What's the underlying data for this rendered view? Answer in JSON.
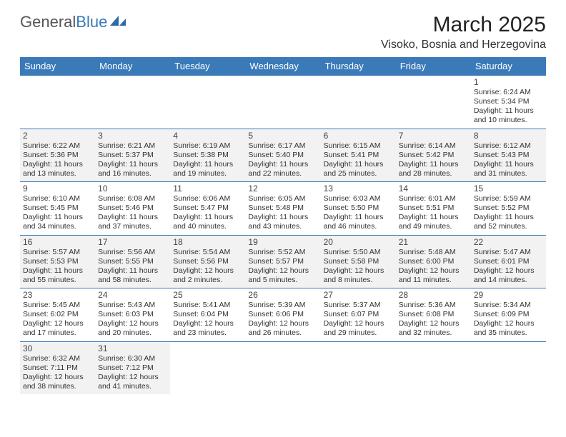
{
  "brand": {
    "general": "General",
    "blue": "Blue"
  },
  "title": "March 2025",
  "location": "Visoko, Bosnia and Herzegovina",
  "colors": {
    "header_bg": "#3a7ab8",
    "alt_bg": "#f2f2f2",
    "border": "#3a7ab8"
  },
  "day_headers": [
    "Sunday",
    "Monday",
    "Tuesday",
    "Wednesday",
    "Thursday",
    "Friday",
    "Saturday"
  ],
  "weeks": [
    [
      {
        "empty": true
      },
      {
        "empty": true
      },
      {
        "empty": true
      },
      {
        "empty": true
      },
      {
        "empty": true
      },
      {
        "empty": true
      },
      {
        "day": "1",
        "sunrise": "Sunrise: 6:24 AM",
        "sunset": "Sunset: 5:34 PM",
        "dl1": "Daylight: 11 hours",
        "dl2": "and 10 minutes.",
        "alt": false
      }
    ],
    [
      {
        "day": "2",
        "sunrise": "Sunrise: 6:22 AM",
        "sunset": "Sunset: 5:36 PM",
        "dl1": "Daylight: 11 hours",
        "dl2": "and 13 minutes.",
        "alt": true
      },
      {
        "day": "3",
        "sunrise": "Sunrise: 6:21 AM",
        "sunset": "Sunset: 5:37 PM",
        "dl1": "Daylight: 11 hours",
        "dl2": "and 16 minutes.",
        "alt": true
      },
      {
        "day": "4",
        "sunrise": "Sunrise: 6:19 AM",
        "sunset": "Sunset: 5:38 PM",
        "dl1": "Daylight: 11 hours",
        "dl2": "and 19 minutes.",
        "alt": true
      },
      {
        "day": "5",
        "sunrise": "Sunrise: 6:17 AM",
        "sunset": "Sunset: 5:40 PM",
        "dl1": "Daylight: 11 hours",
        "dl2": "and 22 minutes.",
        "alt": true
      },
      {
        "day": "6",
        "sunrise": "Sunrise: 6:15 AM",
        "sunset": "Sunset: 5:41 PM",
        "dl1": "Daylight: 11 hours",
        "dl2": "and 25 minutes.",
        "alt": true
      },
      {
        "day": "7",
        "sunrise": "Sunrise: 6:14 AM",
        "sunset": "Sunset: 5:42 PM",
        "dl1": "Daylight: 11 hours",
        "dl2": "and 28 minutes.",
        "alt": true
      },
      {
        "day": "8",
        "sunrise": "Sunrise: 6:12 AM",
        "sunset": "Sunset: 5:43 PM",
        "dl1": "Daylight: 11 hours",
        "dl2": "and 31 minutes.",
        "alt": true
      }
    ],
    [
      {
        "day": "9",
        "sunrise": "Sunrise: 6:10 AM",
        "sunset": "Sunset: 5:45 PM",
        "dl1": "Daylight: 11 hours",
        "dl2": "and 34 minutes.",
        "alt": false
      },
      {
        "day": "10",
        "sunrise": "Sunrise: 6:08 AM",
        "sunset": "Sunset: 5:46 PM",
        "dl1": "Daylight: 11 hours",
        "dl2": "and 37 minutes.",
        "alt": false
      },
      {
        "day": "11",
        "sunrise": "Sunrise: 6:06 AM",
        "sunset": "Sunset: 5:47 PM",
        "dl1": "Daylight: 11 hours",
        "dl2": "and 40 minutes.",
        "alt": false
      },
      {
        "day": "12",
        "sunrise": "Sunrise: 6:05 AM",
        "sunset": "Sunset: 5:48 PM",
        "dl1": "Daylight: 11 hours",
        "dl2": "and 43 minutes.",
        "alt": false
      },
      {
        "day": "13",
        "sunrise": "Sunrise: 6:03 AM",
        "sunset": "Sunset: 5:50 PM",
        "dl1": "Daylight: 11 hours",
        "dl2": "and 46 minutes.",
        "alt": false
      },
      {
        "day": "14",
        "sunrise": "Sunrise: 6:01 AM",
        "sunset": "Sunset: 5:51 PM",
        "dl1": "Daylight: 11 hours",
        "dl2": "and 49 minutes.",
        "alt": false
      },
      {
        "day": "15",
        "sunrise": "Sunrise: 5:59 AM",
        "sunset": "Sunset: 5:52 PM",
        "dl1": "Daylight: 11 hours",
        "dl2": "and 52 minutes.",
        "alt": false
      }
    ],
    [
      {
        "day": "16",
        "sunrise": "Sunrise: 5:57 AM",
        "sunset": "Sunset: 5:53 PM",
        "dl1": "Daylight: 11 hours",
        "dl2": "and 55 minutes.",
        "alt": true
      },
      {
        "day": "17",
        "sunrise": "Sunrise: 5:56 AM",
        "sunset": "Sunset: 5:55 PM",
        "dl1": "Daylight: 11 hours",
        "dl2": "and 58 minutes.",
        "alt": true
      },
      {
        "day": "18",
        "sunrise": "Sunrise: 5:54 AM",
        "sunset": "Sunset: 5:56 PM",
        "dl1": "Daylight: 12 hours",
        "dl2": "and 2 minutes.",
        "alt": true
      },
      {
        "day": "19",
        "sunrise": "Sunrise: 5:52 AM",
        "sunset": "Sunset: 5:57 PM",
        "dl1": "Daylight: 12 hours",
        "dl2": "and 5 minutes.",
        "alt": true
      },
      {
        "day": "20",
        "sunrise": "Sunrise: 5:50 AM",
        "sunset": "Sunset: 5:58 PM",
        "dl1": "Daylight: 12 hours",
        "dl2": "and 8 minutes.",
        "alt": true
      },
      {
        "day": "21",
        "sunrise": "Sunrise: 5:48 AM",
        "sunset": "Sunset: 6:00 PM",
        "dl1": "Daylight: 12 hours",
        "dl2": "and 11 minutes.",
        "alt": true
      },
      {
        "day": "22",
        "sunrise": "Sunrise: 5:47 AM",
        "sunset": "Sunset: 6:01 PM",
        "dl1": "Daylight: 12 hours",
        "dl2": "and 14 minutes.",
        "alt": true
      }
    ],
    [
      {
        "day": "23",
        "sunrise": "Sunrise: 5:45 AM",
        "sunset": "Sunset: 6:02 PM",
        "dl1": "Daylight: 12 hours",
        "dl2": "and 17 minutes.",
        "alt": false
      },
      {
        "day": "24",
        "sunrise": "Sunrise: 5:43 AM",
        "sunset": "Sunset: 6:03 PM",
        "dl1": "Daylight: 12 hours",
        "dl2": "and 20 minutes.",
        "alt": false
      },
      {
        "day": "25",
        "sunrise": "Sunrise: 5:41 AM",
        "sunset": "Sunset: 6:04 PM",
        "dl1": "Daylight: 12 hours",
        "dl2": "and 23 minutes.",
        "alt": false
      },
      {
        "day": "26",
        "sunrise": "Sunrise: 5:39 AM",
        "sunset": "Sunset: 6:06 PM",
        "dl1": "Daylight: 12 hours",
        "dl2": "and 26 minutes.",
        "alt": false
      },
      {
        "day": "27",
        "sunrise": "Sunrise: 5:37 AM",
        "sunset": "Sunset: 6:07 PM",
        "dl1": "Daylight: 12 hours",
        "dl2": "and 29 minutes.",
        "alt": false
      },
      {
        "day": "28",
        "sunrise": "Sunrise: 5:36 AM",
        "sunset": "Sunset: 6:08 PM",
        "dl1": "Daylight: 12 hours",
        "dl2": "and 32 minutes.",
        "alt": false
      },
      {
        "day": "29",
        "sunrise": "Sunrise: 5:34 AM",
        "sunset": "Sunset: 6:09 PM",
        "dl1": "Daylight: 12 hours",
        "dl2": "and 35 minutes.",
        "alt": false
      }
    ],
    [
      {
        "day": "30",
        "sunrise": "Sunrise: 6:32 AM",
        "sunset": "Sunset: 7:11 PM",
        "dl1": "Daylight: 12 hours",
        "dl2": "and 38 minutes.",
        "alt": true
      },
      {
        "day": "31",
        "sunrise": "Sunrise: 6:30 AM",
        "sunset": "Sunset: 7:12 PM",
        "dl1": "Daylight: 12 hours",
        "dl2": "and 41 minutes.",
        "alt": true
      },
      {
        "empty": true
      },
      {
        "empty": true
      },
      {
        "empty": true
      },
      {
        "empty": true
      },
      {
        "empty": true
      }
    ]
  ]
}
